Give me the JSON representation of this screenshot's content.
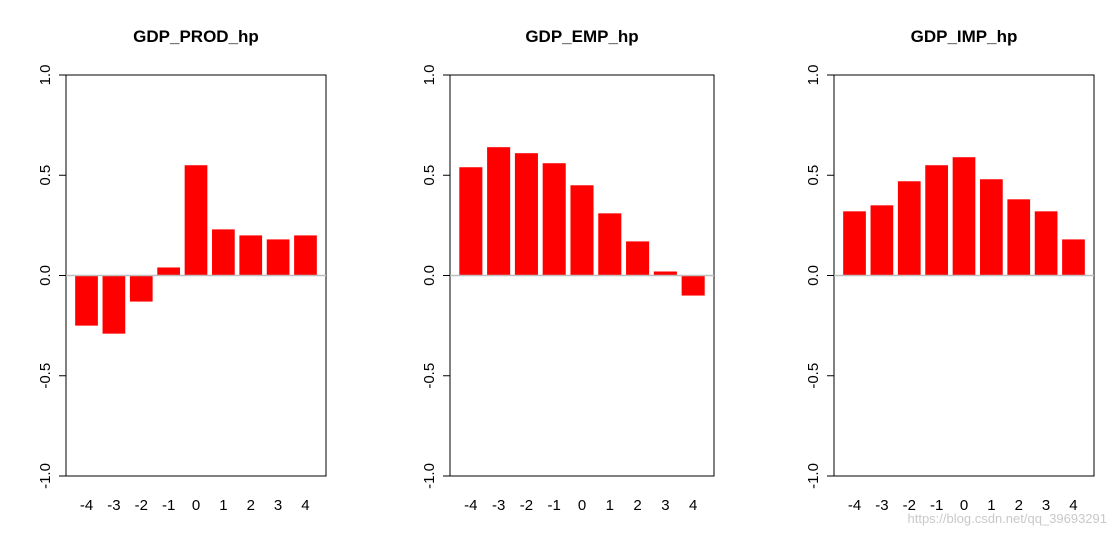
{
  "chart_data": [
    {
      "type": "bar",
      "title": "GDP_PROD_hp",
      "categories": [
        "-4",
        "-3",
        "-2",
        "-1",
        "0",
        "1",
        "2",
        "3",
        "4"
      ],
      "values": [
        -0.25,
        -0.29,
        -0.13,
        0.04,
        0.55,
        0.23,
        0.2,
        0.18,
        0.2
      ],
      "ylim": [
        -1.0,
        1.0
      ],
      "yticks": [
        "-1.0",
        "-0.5",
        "0.0",
        "0.5",
        "1.0"
      ],
      "bar_color": "#ff0000",
      "xlabel": "",
      "ylabel": ""
    },
    {
      "type": "bar",
      "title": "GDP_EMP_hp",
      "categories": [
        "-4",
        "-3",
        "-2",
        "-1",
        "0",
        "1",
        "2",
        "3",
        "4"
      ],
      "values": [
        0.54,
        0.64,
        0.61,
        0.56,
        0.45,
        0.31,
        0.17,
        0.02,
        -0.1
      ],
      "ylim": [
        -1.0,
        1.0
      ],
      "yticks": [
        "-1.0",
        "-0.5",
        "0.0",
        "0.5",
        "1.0"
      ],
      "bar_color": "#ff0000",
      "xlabel": "",
      "ylabel": ""
    },
    {
      "type": "bar",
      "title": "GDP_IMP_hp",
      "categories": [
        "-4",
        "-3",
        "-2",
        "-1",
        "0",
        "1",
        "2",
        "3",
        "4"
      ],
      "values": [
        0.32,
        0.35,
        0.47,
        0.55,
        0.59,
        0.48,
        0.38,
        0.32,
        0.18
      ],
      "ylim": [
        -1.0,
        1.0
      ],
      "yticks": [
        "-1.0",
        "-0.5",
        "0.0",
        "0.5",
        "1.0"
      ],
      "bar_color": "#ff0000",
      "xlabel": "",
      "ylabel": ""
    }
  ],
  "watermark": "https://blog.csdn.net/qq_39693291",
  "colors": {
    "bar": "#ff0000",
    "zero_line": "#bebebe",
    "axis": "#000000"
  }
}
